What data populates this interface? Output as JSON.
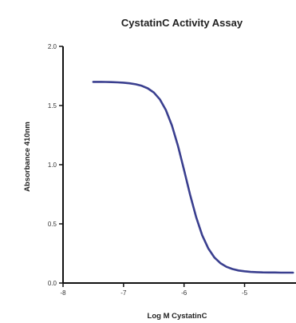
{
  "chart_data": {
    "type": "line",
    "title": "CystatinC Activity Assay",
    "xlabel": "Log M CystatinC",
    "ylabel": "Absorbance 410nm",
    "xlim": [
      -8,
      -4.15
    ],
    "ylim": [
      0,
      2.0
    ],
    "x_ticks": [
      -8,
      -7,
      -6,
      -5
    ],
    "x_tick_labels": [
      "-8",
      "-7",
      "-6",
      "-5"
    ],
    "y_ticks": [
      0,
      0.5,
      1.0,
      1.5,
      2.0
    ],
    "y_tick_labels": [
      "0.0",
      "0.5",
      "1.0",
      "1.5",
      "2.0"
    ],
    "grid": false,
    "legend": "none",
    "series": [
      {
        "color": "#3a3f8f",
        "x": [
          -7.5,
          -7.4,
          -7.3,
          -7.2,
          -7.1,
          -7.0,
          -6.9,
          -6.8,
          -6.7,
          -6.6,
          -6.5,
          -6.4,
          -6.3,
          -6.2,
          -6.1,
          -6.0,
          -5.9,
          -5.8,
          -5.7,
          -5.6,
          -5.5,
          -5.4,
          -5.3,
          -5.2,
          -5.1,
          -5.0,
          -4.9,
          -4.8,
          -4.7,
          -4.6,
          -4.5,
          -4.4,
          -4.3,
          -4.2
        ],
        "values": [
          1.7,
          1.7,
          1.699,
          1.698,
          1.696,
          1.693,
          1.688,
          1.68,
          1.667,
          1.645,
          1.61,
          1.552,
          1.462,
          1.331,
          1.158,
          0.955,
          0.745,
          0.556,
          0.404,
          0.293,
          0.217,
          0.168,
          0.137,
          0.118,
          0.106,
          0.099,
          0.094,
          0.092,
          0.09,
          0.089,
          0.089,
          0.088,
          0.088,
          0.088
        ]
      }
    ]
  }
}
